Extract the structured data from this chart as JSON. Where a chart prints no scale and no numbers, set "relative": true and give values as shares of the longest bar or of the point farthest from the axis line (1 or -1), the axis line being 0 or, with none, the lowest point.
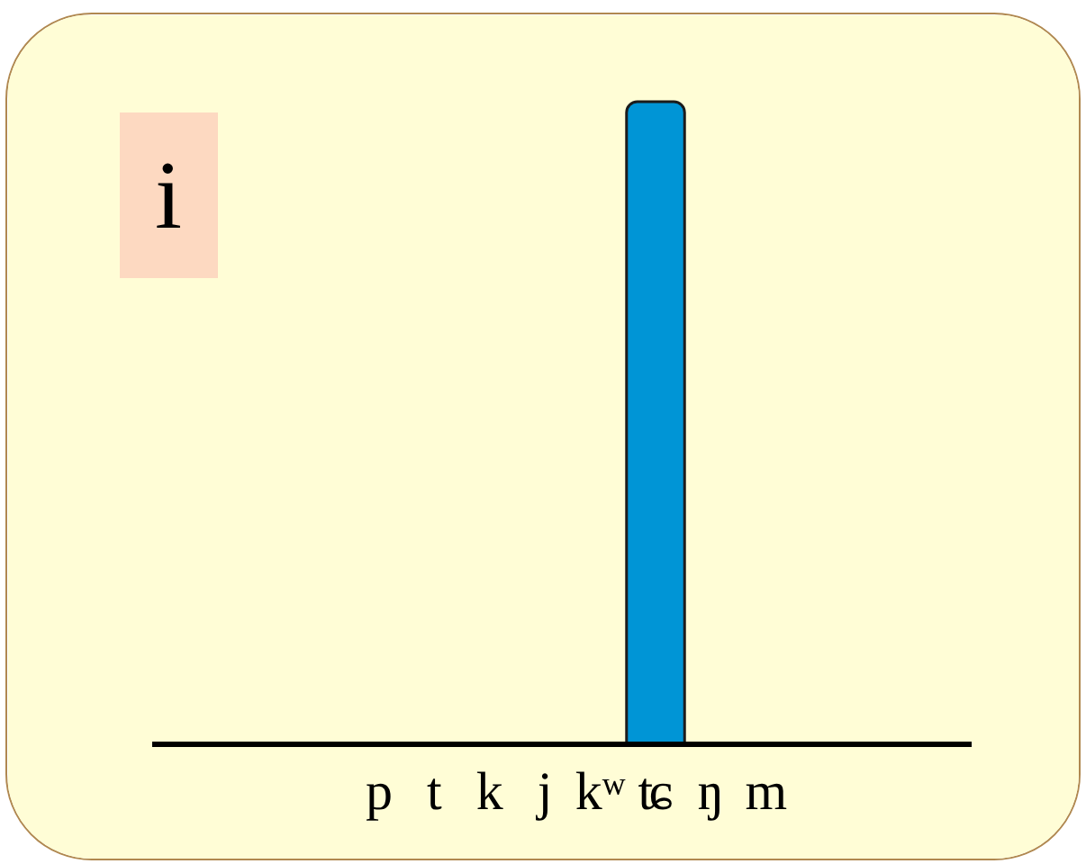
{
  "chart_data": {
    "type": "bar",
    "title": "i",
    "categories": [
      "p",
      "t",
      "k",
      "j",
      "kʷ",
      "ʨ",
      "ŋ",
      "m"
    ],
    "values": [
      null,
      null,
      null,
      null,
      null,
      1,
      null,
      null
    ],
    "relative": true,
    "color": "#0095d6"
  }
}
